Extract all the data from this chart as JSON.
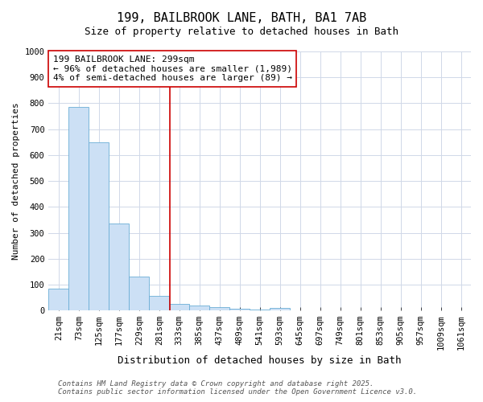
{
  "title_line1": "199, BAILBROOK LANE, BATH, BA1 7AB",
  "title_line2": "Size of property relative to detached houses in Bath",
  "xlabel": "Distribution of detached houses by size in Bath",
  "ylabel": "Number of detached properties",
  "bar_labels": [
    "21sqm",
    "73sqm",
    "125sqm",
    "177sqm",
    "229sqm",
    "281sqm",
    "333sqm",
    "385sqm",
    "437sqm",
    "489sqm",
    "541sqm",
    "593sqm",
    "645sqm",
    "697sqm",
    "749sqm",
    "801sqm",
    "853sqm",
    "905sqm",
    "957sqm",
    "1009sqm",
    "1061sqm"
  ],
  "bar_values": [
    85,
    785,
    650,
    335,
    133,
    58,
    25,
    20,
    13,
    8,
    5,
    10,
    0,
    0,
    0,
    0,
    0,
    0,
    0,
    0,
    0
  ],
  "bar_color": "#cce0f5",
  "bar_edgecolor": "#6baed6",
  "grid_color": "#d0d8e8",
  "vline_x_index": 5.54,
  "vline_color": "#cc0000",
  "annotation_text": "199 BAILBROOK LANE: 299sqm\n← 96% of detached houses are smaller (1,989)\n4% of semi-detached houses are larger (89) →",
  "annotation_box_edgecolor": "#cc0000",
  "ylim": [
    0,
    1000
  ],
  "yticks": [
    0,
    100,
    200,
    300,
    400,
    500,
    600,
    700,
    800,
    900,
    1000
  ],
  "footnote_line1": "Contains HM Land Registry data © Crown copyright and database right 2025.",
  "footnote_line2": "Contains public sector information licensed under the Open Government Licence v3.0.",
  "bg_color": "#ffffff",
  "plot_bg_color": "#ffffff",
  "title_fontsize": 11,
  "subtitle_fontsize": 9,
  "xlabel_fontsize": 9,
  "ylabel_fontsize": 8,
  "tick_fontsize": 7.5,
  "annotation_fontsize": 8,
  "footnote_fontsize": 6.5
}
